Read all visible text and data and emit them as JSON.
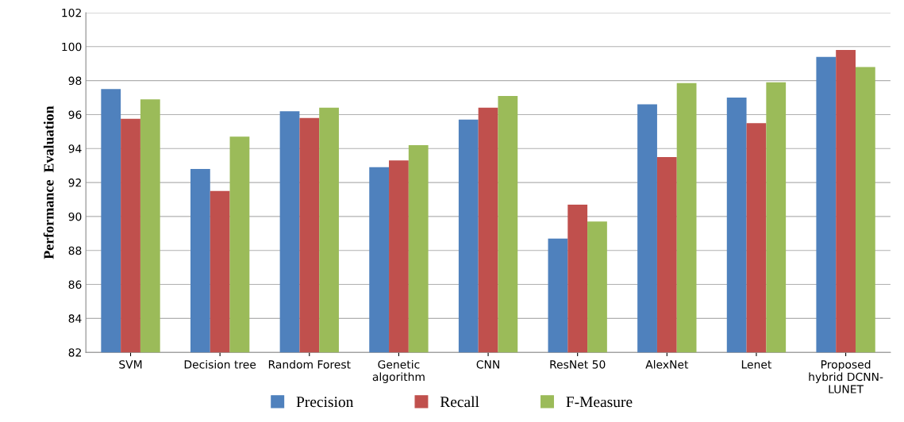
{
  "chart_data": {
    "type": "bar",
    "ylabel": "Performance  Evaluation",
    "categories": [
      "SVM",
      "Decision tree",
      "Random Forest",
      "Genetic\nalgorithm",
      "CNN",
      "ResNet 50",
      "AlexNet",
      "Lenet",
      "Proposed\nhybrid DCNN-\nLUNET"
    ],
    "series": [
      {
        "name": "Precision",
        "color": "#4f81bd",
        "values": [
          97.5,
          92.8,
          96.2,
          92.9,
          95.7,
          88.7,
          96.6,
          97.0,
          99.4
        ]
      },
      {
        "name": "Recall",
        "color": "#c0504d",
        "values": [
          95.75,
          91.5,
          95.8,
          93.3,
          96.4,
          90.7,
          93.5,
          95.5,
          99.8
        ]
      },
      {
        "name": "F-Measure",
        "color": "#9bbb59",
        "values": [
          96.9,
          94.7,
          96.4,
          94.2,
          97.1,
          89.7,
          97.85,
          97.9,
          98.8
        ]
      }
    ],
    "ylim": [
      82,
      102
    ],
    "yticks": [
      82,
      84,
      86,
      88,
      90,
      92,
      94,
      96,
      98,
      100,
      102
    ],
    "grid": "y",
    "legend": "bottom"
  }
}
